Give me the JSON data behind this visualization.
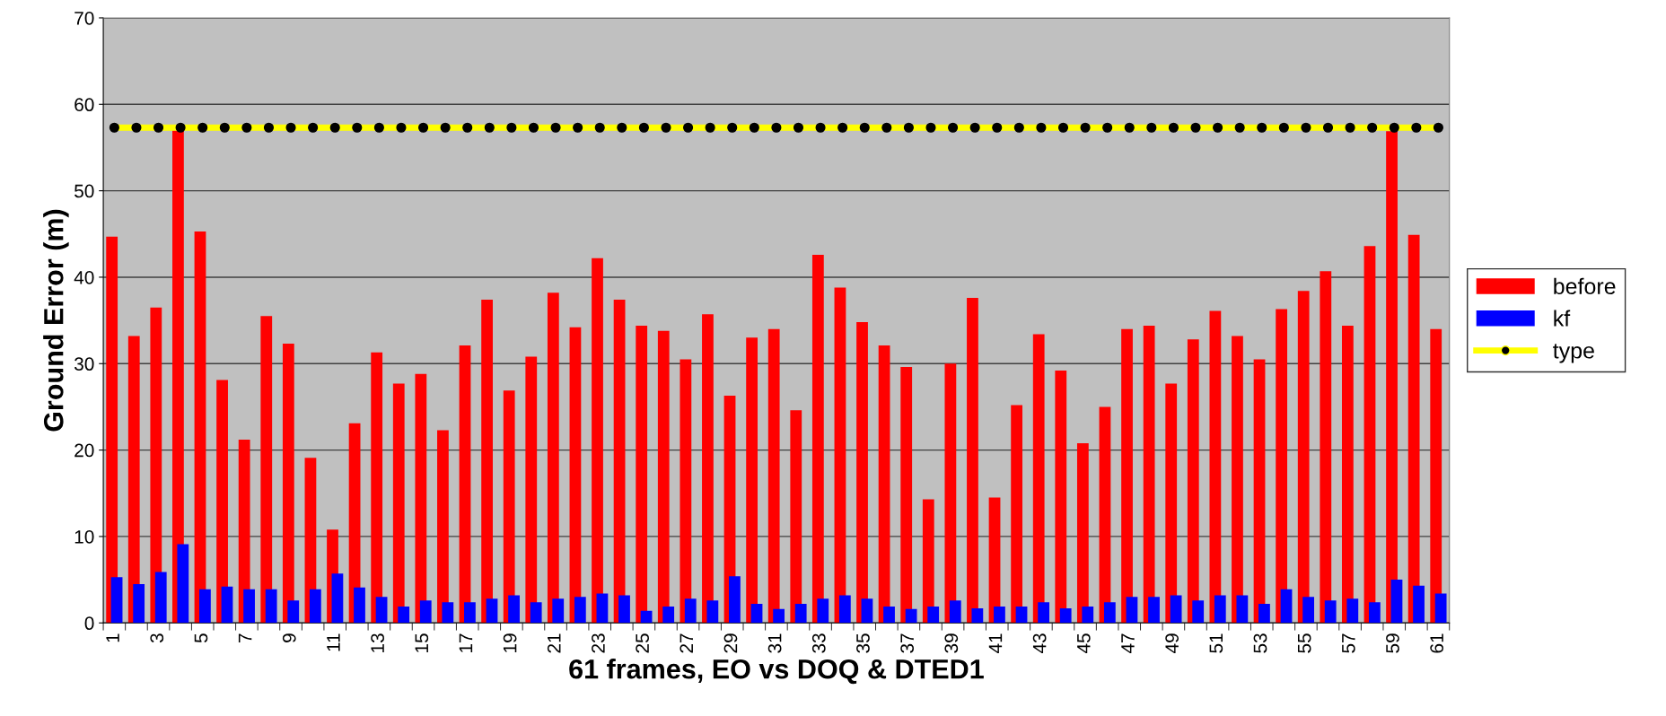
{
  "chart_data": {
    "type": "bar",
    "xlabel": "61 frames, EO vs DOQ & DTED1",
    "ylabel": "Ground Error (m)",
    "categories": [
      "1",
      null,
      "3",
      null,
      "5",
      null,
      "7",
      null,
      "9",
      null,
      "11",
      null,
      "13",
      null,
      "15",
      null,
      "17",
      null,
      "19",
      null,
      "21",
      null,
      "23",
      null,
      "25",
      null,
      "27",
      null,
      "29",
      null,
      "31",
      null,
      "33",
      null,
      "35",
      null,
      "37",
      null,
      "39",
      null,
      "41",
      null,
      "43",
      null,
      "45",
      null,
      "47",
      null,
      "49",
      null,
      "51",
      null,
      "53",
      null,
      "55",
      null,
      "57",
      null,
      "59",
      null,
      "61"
    ],
    "series": [
      {
        "name": "before",
        "color": "#ff0000",
        "values": [
          44.7,
          33.2,
          36.5,
          57.0,
          45.3,
          28.1,
          21.2,
          35.5,
          32.3,
          19.1,
          10.8,
          23.1,
          31.3,
          27.7,
          28.8,
          22.3,
          32.1,
          37.4,
          26.9,
          30.8,
          38.2,
          34.2,
          42.2,
          37.4,
          34.4,
          33.8,
          30.5,
          35.7,
          26.3,
          33.0,
          34.0,
          24.6,
          42.6,
          38.8,
          34.8,
          32.1,
          29.6,
          14.3,
          30.0,
          37.6,
          14.5,
          25.2,
          33.4,
          29.2,
          20.8,
          25.0,
          34.0,
          34.4,
          27.7,
          32.8,
          36.1,
          33.2,
          30.5,
          36.3,
          38.4,
          40.7,
          34.4,
          43.6,
          56.9,
          44.9,
          34.0
        ]
      },
      {
        "name": "kf",
        "color": "#0000ff",
        "values": [
          5.3,
          4.5,
          5.9,
          9.1,
          3.9,
          4.2,
          3.9,
          3.9,
          2.6,
          3.9,
          5.7,
          4.1,
          3.0,
          1.9,
          2.6,
          2.4,
          2.4,
          2.8,
          3.2,
          2.4,
          2.8,
          3.0,
          3.4,
          3.2,
          1.4,
          1.9,
          2.8,
          2.6,
          5.4,
          2.2,
          1.6,
          2.2,
          2.8,
          3.2,
          2.8,
          1.9,
          1.6,
          1.9,
          2.6,
          1.7,
          1.9,
          1.9,
          2.4,
          1.7,
          1.9,
          2.4,
          3.0,
          3.0,
          3.2,
          2.6,
          3.2,
          3.2,
          2.2,
          3.9,
          3.0,
          2.6,
          2.8,
          2.4,
          5.0,
          4.3,
          3.4
        ]
      },
      {
        "name": "type",
        "type": "line",
        "color": "#ffff00",
        "marker": "circle",
        "values": [
          57.3,
          57.3,
          57.3,
          57.3,
          57.3,
          57.3,
          57.3,
          57.3,
          57.3,
          57.3,
          57.3,
          57.3,
          57.3,
          57.3,
          57.3,
          57.3,
          57.3,
          57.3,
          57.3,
          57.3,
          57.3,
          57.3,
          57.3,
          57.3,
          57.3,
          57.3,
          57.3,
          57.3,
          57.3,
          57.3,
          57.3,
          57.3,
          57.3,
          57.3,
          57.3,
          57.3,
          57.3,
          57.3,
          57.3,
          57.3,
          57.3,
          57.3,
          57.3,
          57.3,
          57.3,
          57.3,
          57.3,
          57.3,
          57.3,
          57.3,
          57.3,
          57.3,
          57.3,
          57.3,
          57.3,
          57.3,
          57.3,
          57.3,
          57.3,
          57.3,
          57.3
        ]
      }
    ],
    "ylim": [
      0,
      70
    ],
    "yticks": [
      0,
      10,
      20,
      30,
      40,
      50,
      60,
      70
    ],
    "grid": "y",
    "legend": "right"
  }
}
